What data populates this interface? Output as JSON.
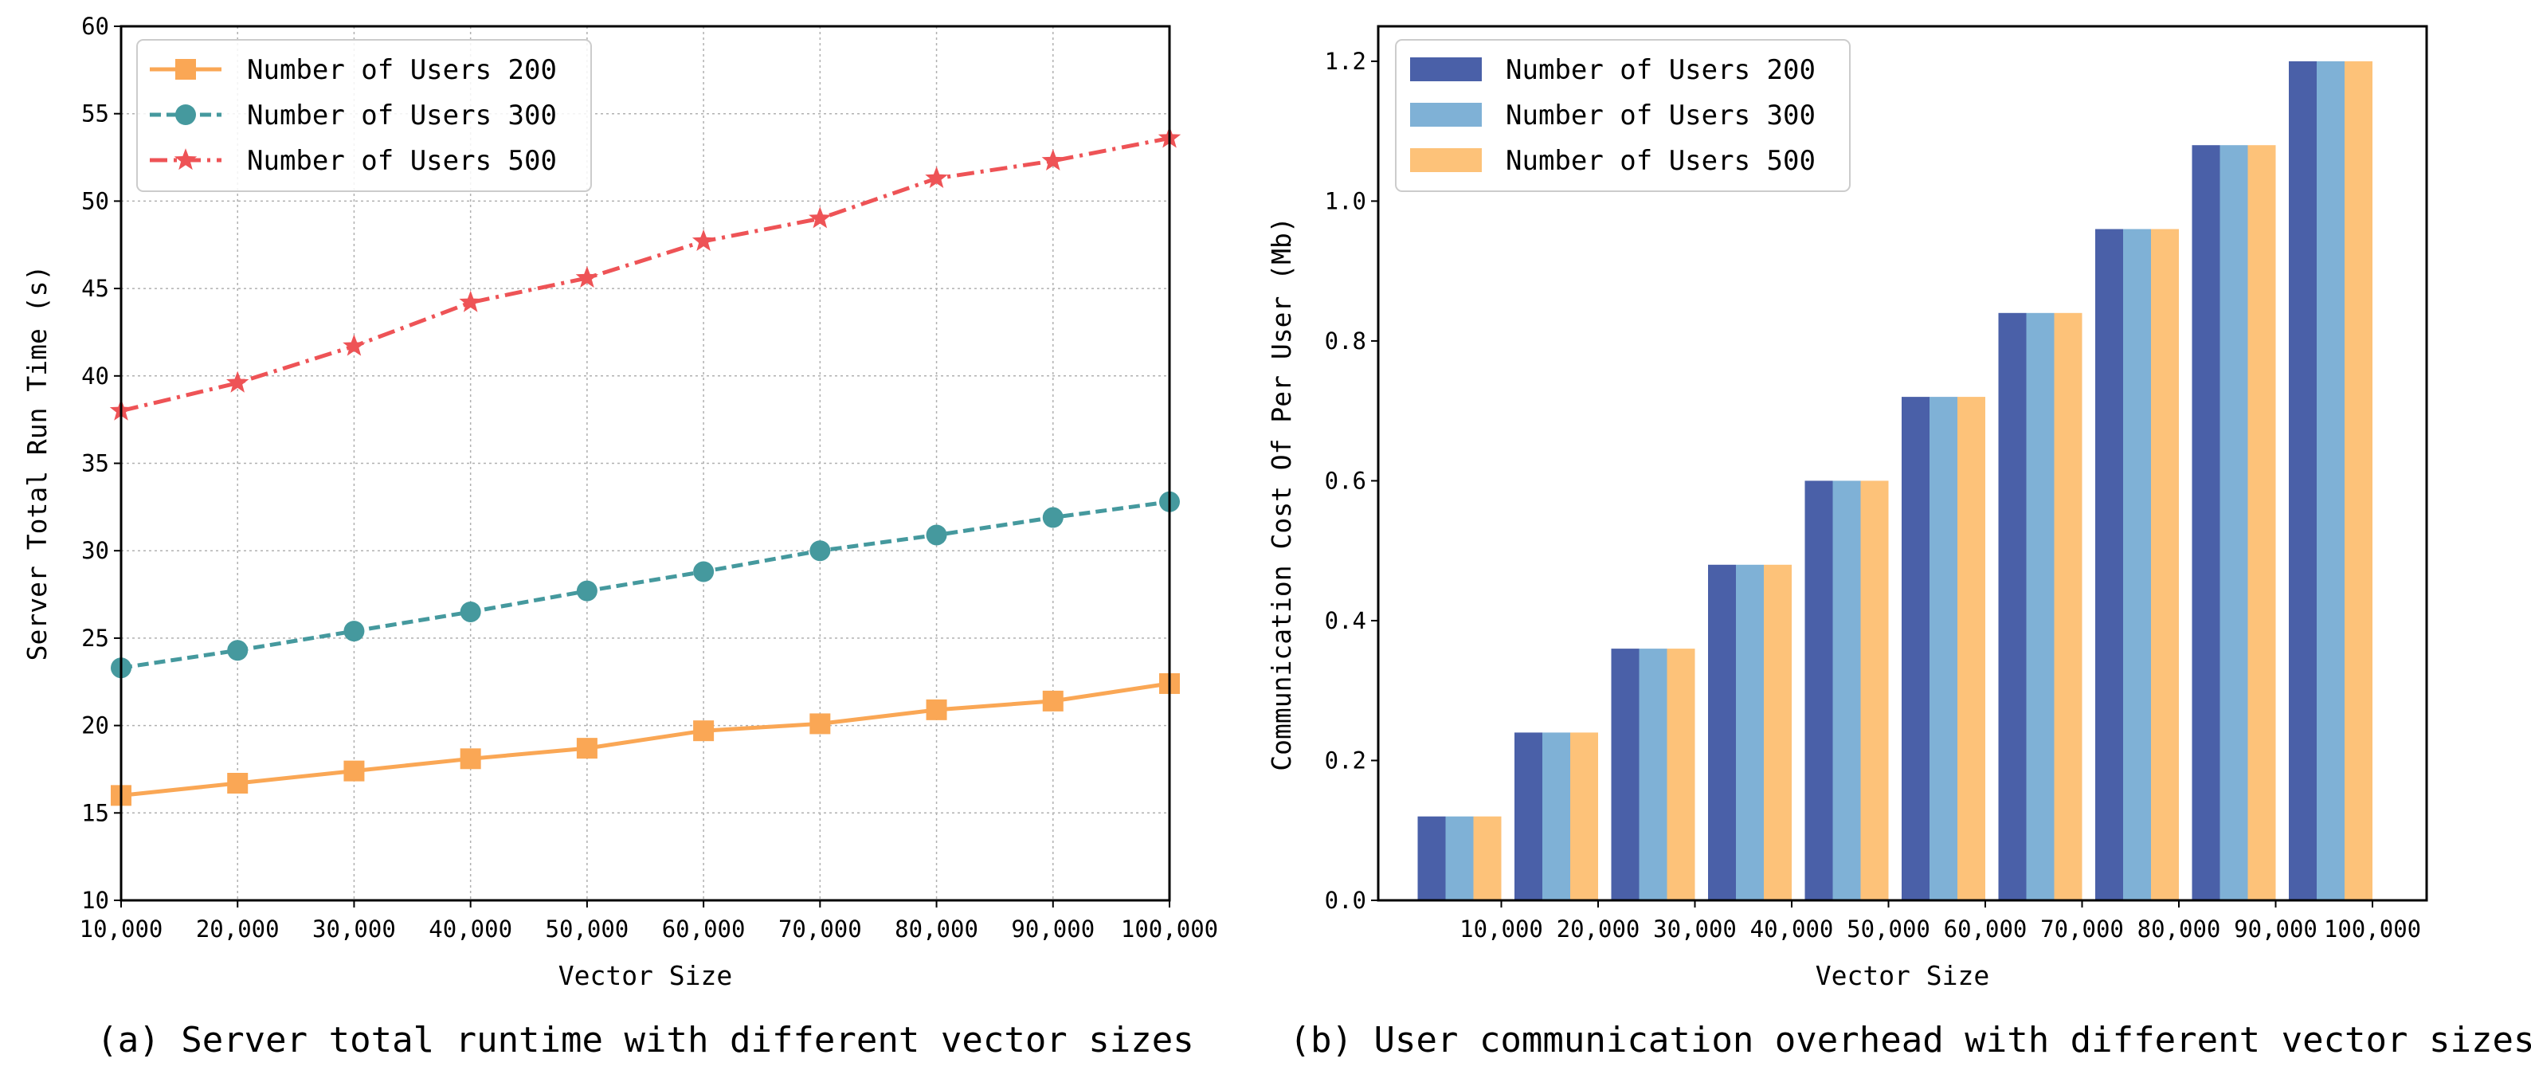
{
  "chart_data": [
    {
      "type": "line",
      "x": [
        10000,
        20000,
        30000,
        40000,
        50000,
        60000,
        70000,
        80000,
        90000,
        100000
      ],
      "x_tick_labels": [
        "10,000",
        "20,000",
        "30,000",
        "40,000",
        "50,000",
        "60,000",
        "70,000",
        "80,000",
        "90,000",
        "100,000"
      ],
      "y_ticks": [
        "10",
        "15",
        "20",
        "25",
        "30",
        "35",
        "40",
        "45",
        "50",
        "55",
        "60"
      ],
      "series": [
        {
          "name": "Number of Users 200",
          "values": [
            16.0,
            16.7,
            17.4,
            18.1,
            18.7,
            19.7,
            20.1,
            20.9,
            21.4,
            22.4
          ],
          "color": "#FAA755",
          "marker": "square",
          "line": "solid"
        },
        {
          "name": "Number of Users 300",
          "values": [
            23.3,
            24.3,
            25.4,
            26.5,
            27.7,
            28.8,
            30.0,
            30.9,
            31.9,
            32.8
          ],
          "color": "#45999E",
          "marker": "circle",
          "line": "dashed"
        },
        {
          "name": "Number of Users 500",
          "values": [
            38.0,
            39.6,
            41.7,
            44.2,
            45.6,
            47.7,
            49.0,
            51.3,
            52.3,
            53.6
          ],
          "color": "#EE5356",
          "marker": "star",
          "line": "dashdot"
        }
      ],
      "xlabel": "Vector Size",
      "ylabel": "Server Total Run Time (s)",
      "xlim": [
        10000,
        100000
      ],
      "ylim": [
        10,
        60
      ],
      "grid": true,
      "legend_position": "top-left",
      "caption": "(a) Server total runtime with different vector sizes"
    },
    {
      "type": "bar",
      "categories": [
        "10,000",
        "20,000",
        "30,000",
        "40,000",
        "50,000",
        "60,000",
        "70,000",
        "80,000",
        "90,000",
        "100,000"
      ],
      "y_ticks": [
        "0.0",
        "0.2",
        "0.4",
        "0.6",
        "0.8",
        "1.0",
        "1.2"
      ],
      "series": [
        {
          "name": "Number of Users 200",
          "values": [
            0.12,
            0.24,
            0.36,
            0.48,
            0.6,
            0.72,
            0.84,
            0.96,
            1.08,
            1.2
          ],
          "color": "#4A60A8"
        },
        {
          "name": "Number of Users 300",
          "values": [
            0.12,
            0.24,
            0.36,
            0.48,
            0.6,
            0.72,
            0.84,
            0.96,
            1.08,
            1.2
          ],
          "color": "#7FB1D6"
        },
        {
          "name": "Number of Users 500",
          "values": [
            0.12,
            0.24,
            0.36,
            0.48,
            0.6,
            0.72,
            0.84,
            0.96,
            1.08,
            1.2
          ],
          "color": "#FDC279"
        }
      ],
      "xlabel": "Vector Size",
      "ylabel": "Communication Cost Of Per User (Mb)",
      "ylim": [
        0,
        1.25
      ],
      "grid": false,
      "legend_position": "top-left",
      "caption": "(b) User communication overhead with different vector sizes"
    }
  ]
}
